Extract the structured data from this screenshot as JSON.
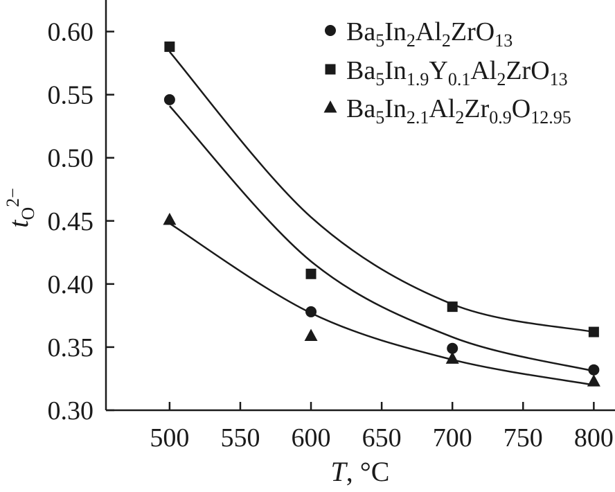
{
  "chart_data": {
    "type": "scatter",
    "xlabel": {
      "var": "T",
      "rest": ", °C"
    },
    "ylabel": {
      "var": "t",
      "sub": "O",
      "sup": "2−"
    },
    "xlim": [
      455,
      815
    ],
    "ylim": [
      0.3,
      0.625
    ],
    "x_ticks": [
      500,
      550,
      600,
      650,
      700,
      750,
      800
    ],
    "x_tick_labels": [
      "500",
      "550",
      "600",
      "650",
      "700",
      "750",
      "800"
    ],
    "y_ticks": [
      0.3,
      0.35,
      0.4,
      0.45,
      0.5,
      0.55,
      0.6
    ],
    "y_tick_labels": [
      "0.30",
      "0.35",
      "0.40",
      "0.45",
      "0.50",
      "0.55",
      "0.60"
    ],
    "legend_position": "top-right",
    "grid": false,
    "series": [
      {
        "name": "Ba5In2Al2ZrO13",
        "marker": "circle",
        "label_parts": [
          [
            "Ba",
            "n"
          ],
          [
            "5",
            "s"
          ],
          [
            "In",
            "n"
          ],
          [
            "2",
            "s"
          ],
          [
            "Al",
            "n"
          ],
          [
            "2",
            "s"
          ],
          [
            "ZrO",
            "n"
          ],
          [
            "13",
            "s"
          ]
        ],
        "x": [
          500,
          600,
          700,
          800
        ],
        "y": [
          0.546,
          0.378,
          0.349,
          0.332
        ],
        "fit_y": [
          0.541,
          0.418,
          0.358,
          0.331
        ]
      },
      {
        "name": "Ba5In1.9Y0.1Al2ZrO13",
        "marker": "square",
        "label_parts": [
          [
            "Ba",
            "n"
          ],
          [
            "5",
            "s"
          ],
          [
            "In",
            "n"
          ],
          [
            "1.9",
            "s"
          ],
          [
            "Y",
            "n"
          ],
          [
            "0.1",
            "s"
          ],
          [
            "Al",
            "n"
          ],
          [
            "2",
            "s"
          ],
          [
            "ZrO",
            "n"
          ],
          [
            "13",
            "s"
          ]
        ],
        "x": [
          500,
          600,
          700,
          800
        ],
        "y": [
          0.588,
          0.408,
          0.382,
          0.362
        ],
        "fit_y": [
          0.584,
          0.453,
          0.384,
          0.362
        ]
      },
      {
        "name": "Ba5In2.1Al2Zr0.9O12.95",
        "marker": "triangle",
        "label_parts": [
          [
            "Ba",
            "n"
          ],
          [
            "5",
            "s"
          ],
          [
            "In",
            "n"
          ],
          [
            "2.1",
            "s"
          ],
          [
            "Al",
            "n"
          ],
          [
            "2",
            "s"
          ],
          [
            "Zr",
            "n"
          ],
          [
            "0.9",
            "s"
          ],
          [
            "O",
            "n"
          ],
          [
            "12.95",
            "s"
          ]
        ],
        "x": [
          500,
          600,
          700,
          800
        ],
        "y": [
          0.451,
          0.359,
          0.341,
          0.323
        ],
        "fit_y": [
          0.448,
          0.377,
          0.34,
          0.32
        ]
      }
    ]
  }
}
